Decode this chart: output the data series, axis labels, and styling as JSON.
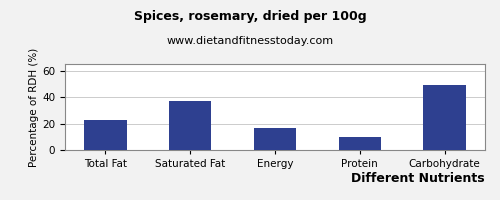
{
  "title": "Spices, rosemary, dried per 100g",
  "subtitle": "www.dietandfitnesstoday.com",
  "xlabel": "Different Nutrients",
  "ylabel": "Percentage of RDH (%)",
  "categories": [
    "Total Fat",
    "Saturated Fat",
    "Energy",
    "Protein",
    "Carbohydrate"
  ],
  "values": [
    23,
    37,
    17,
    10,
    49
  ],
  "bar_color": "#2E4090",
  "ylim": [
    0,
    65
  ],
  "yticks": [
    0,
    20,
    40,
    60
  ],
  "background_color": "#f2f2f2",
  "plot_background": "#ffffff",
  "title_fontsize": 9,
  "subtitle_fontsize": 8,
  "xlabel_fontsize": 9,
  "ylabel_fontsize": 7.5,
  "tick_fontsize": 7.5,
  "border_color": "#888888"
}
